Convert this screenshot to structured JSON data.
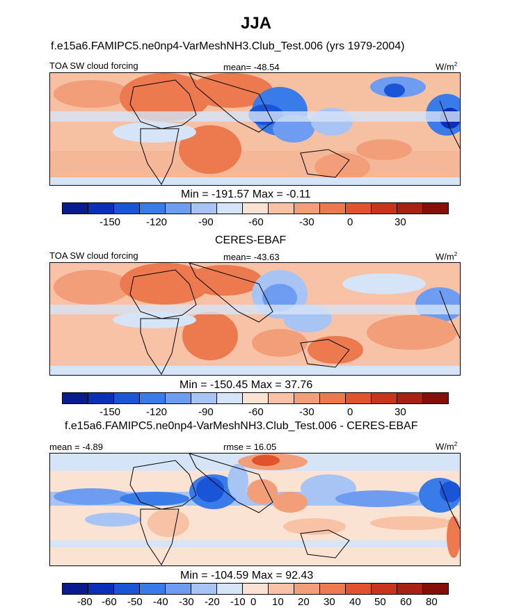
{
  "title": "JJA",
  "panels": [
    {
      "heading": "f.e15a6.FAMIPC5.ne0np4-VarMeshNH3.Club_Test.006 (yrs 1979-2004)",
      "left_label": "TOA SW cloud forcing",
      "center_label": "mean= -48.54",
      "units": "W/m",
      "units_sup": "2",
      "minmax": "Min = -191.57 Max =  -0.11",
      "colorbar_ticks": [
        "-150",
        "-120",
        "-90",
        "-60",
        "-30",
        "0",
        "30"
      ]
    },
    {
      "heading": "CERES-EBAF",
      "left_label": "TOA SW cloud forcing",
      "center_label": "mean= -43.63",
      "units": "W/m",
      "units_sup": "2",
      "minmax": "Min = -150.45 Max =  37.76",
      "colorbar_ticks": [
        "-150",
        "-120",
        "-90",
        "-60",
        "-30",
        "0",
        "30"
      ]
    },
    {
      "heading": "f.e15a6.FAMIPC5.ne0np4-VarMeshNH3.Club_Test.006 - CERES-EBAF",
      "left_label": "mean =  -4.89",
      "center_label": "rmse =  16.05",
      "units": "W/m",
      "units_sup": "2",
      "minmax": "Min = -104.59 Max =  92.43",
      "colorbar_ticks": [
        "-80",
        "-60",
        "-50",
        "-40",
        "-30",
        "-20",
        "-10",
        "0",
        "10",
        "20",
        "30",
        "40",
        "50",
        "60",
        "80"
      ]
    }
  ],
  "palette": [
    "#0a1a8f",
    "#0c2fb8",
    "#1a55d8",
    "#3a7bea",
    "#6d9cf0",
    "#a8c4f5",
    "#d6e4f7",
    "#fbe3d3",
    "#f7c2a5",
    "#f29e78",
    "#ec7a4e",
    "#e0532d",
    "#c9341c",
    "#a82212",
    "#860f0a"
  ],
  "chart_data": [
    {
      "type": "heatmap",
      "title": "f.e15a6.FAMIPC5.ne0np4-VarMeshNH3.Club_Test.006 (yrs 1979-2004)",
      "variable": "TOA SW cloud forcing",
      "season": "JJA",
      "units": "W/m2",
      "mean": -48.54,
      "min": -191.57,
      "max": -0.11,
      "contour_levels": [
        -165,
        -150,
        -135,
        -120,
        -105,
        -90,
        -75,
        -60,
        -45,
        -30,
        -15,
        0,
        15,
        30,
        45
      ]
    },
    {
      "type": "heatmap",
      "title": "CERES-EBAF",
      "variable": "TOA SW cloud forcing",
      "season": "JJA",
      "units": "W/m2",
      "mean": -43.63,
      "min": -150.45,
      "max": 37.76,
      "contour_levels": [
        -165,
        -150,
        -135,
        -120,
        -105,
        -90,
        -75,
        -60,
        -45,
        -30,
        -15,
        0,
        15,
        30,
        45
      ]
    },
    {
      "type": "heatmap",
      "title": "f.e15a6.FAMIPC5.ne0np4-VarMeshNH3.Club_Test.006 - CERES-EBAF",
      "season": "JJA",
      "units": "W/m2",
      "mean": -4.89,
      "rmse": 16.05,
      "min": -104.59,
      "max": 92.43,
      "contour_levels": [
        -80,
        -60,
        -50,
        -40,
        -30,
        -20,
        -10,
        0,
        10,
        20,
        30,
        40,
        50,
        60,
        80
      ]
    }
  ]
}
